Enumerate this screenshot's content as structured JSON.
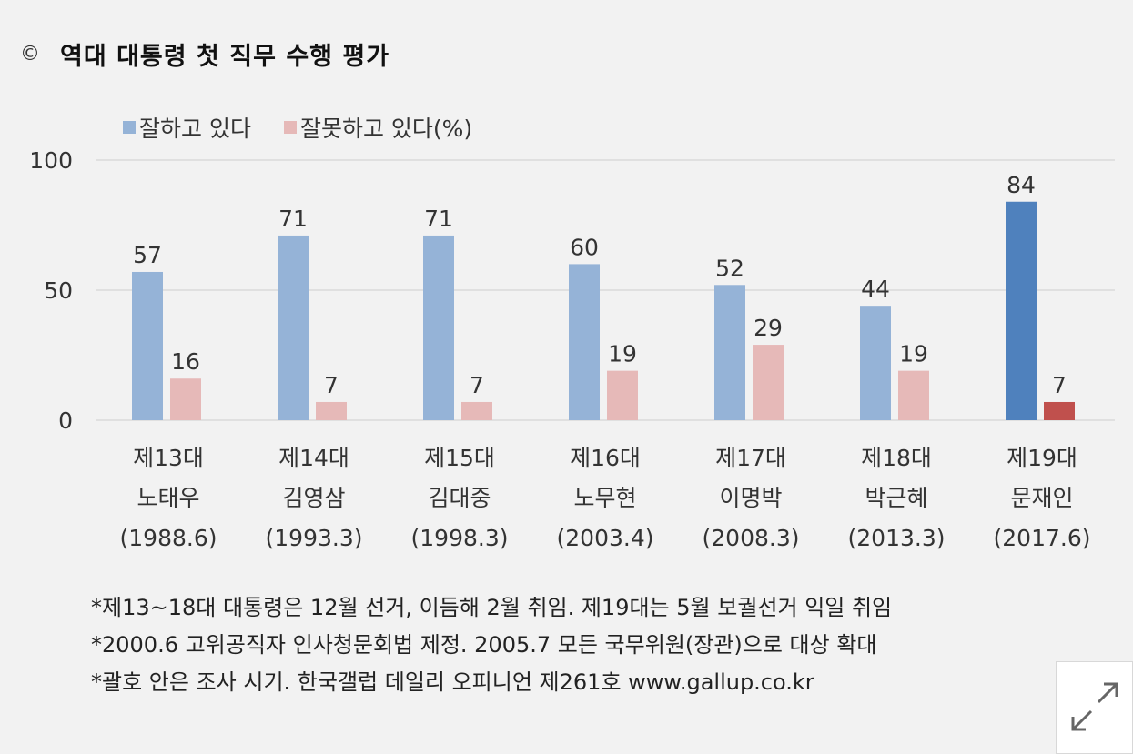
{
  "title": {
    "marker": "©",
    "text": "역대 대통령 첫 직무 수행 평가"
  },
  "colors": {
    "approve": "#95b3d7",
    "approve_highlight": "#4f81bd",
    "disapprove": "#e6b9b8",
    "disapprove_highlight": "#c0504d",
    "grid": "#d9d9d9",
    "text": "#333333"
  },
  "chart_data": {
    "type": "bar",
    "title": "역대 대통령 첫 직무 수행 평가",
    "ylim": [
      0,
      100
    ],
    "yticks": [
      "0",
      "50",
      "100"
    ],
    "grid": true,
    "legend_placement": "top-left",
    "categories": [
      [
        "제13대",
        "노태우",
        "(1988.6)"
      ],
      [
        "제14대",
        "김영삼",
        "(1993.3)"
      ],
      [
        "제15대",
        "김대중",
        "(1998.3)"
      ],
      [
        "제16대",
        "노무현",
        "(2003.4)"
      ],
      [
        "제17대",
        "이명박",
        "(2008.3)"
      ],
      [
        "제18대",
        "박근혜",
        "(2013.3)"
      ],
      [
        "제19대",
        "문재인",
        "(2017.6)"
      ]
    ],
    "series": [
      {
        "name": "잘하고 있다",
        "values": [
          57,
          71,
          71,
          60,
          52,
          44,
          84
        ]
      },
      {
        "name": "잘못하고 있다(%)",
        "values": [
          16,
          7,
          7,
          19,
          29,
          19,
          7
        ]
      }
    ],
    "highlight_index": 6
  },
  "notes": [
    "*제13~18대 대통령은 12월 선거, 이듬해 2월 취임. 제19대는 5월 보궐선거 익일 취임",
    "*2000.6 고위공직자 인사청문회법 제정. 2005.7 모든 국무위원(장관)으로 대상 확대",
    "*괄호 안은 조사 시기. 한국갤럽 데일리 오피니언 제261호 www.gallup.co.kr"
  ],
  "controls": {
    "expand_icon": "expand-arrows-icon"
  }
}
